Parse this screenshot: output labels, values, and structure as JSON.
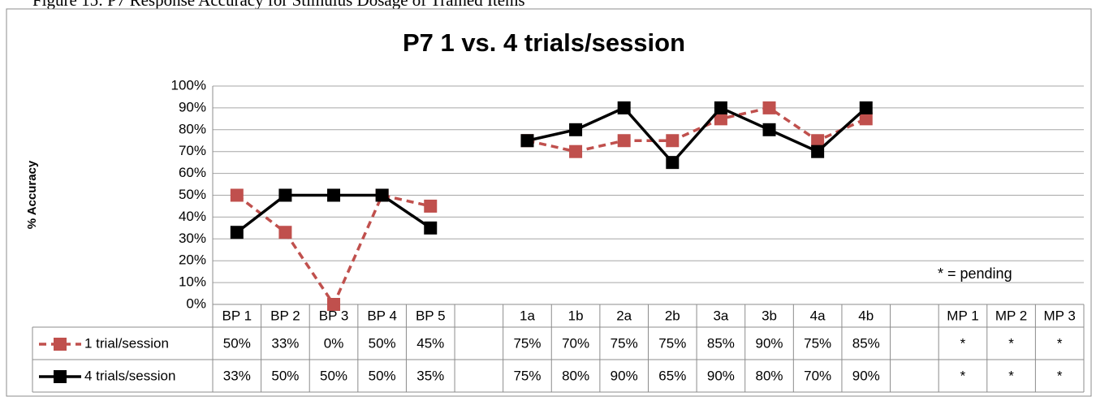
{
  "caption": "Figure 15: P7 Response Accuracy for Stimulus Dosage of Trained Items",
  "chart_data": {
    "type": "line",
    "title": "P7 1 vs. 4 trials/session",
    "y_label": "% Accuracy",
    "categories": [
      "BP 1",
      "BP 2",
      "BP 3",
      "BP 4",
      "BP 5",
      null,
      "1a",
      "1b",
      "2a",
      "2b",
      "3a",
      "3b",
      "4a",
      "4b",
      null,
      "MP 1",
      "MP 2",
      "MP 3"
    ],
    "series": [
      {
        "name": "1 trial/session",
        "color": "#c0504d",
        "dashed": true,
        "values": [
          50,
          33,
          0,
          50,
          45,
          null,
          75,
          70,
          75,
          75,
          85,
          90,
          75,
          85,
          null,
          null,
          null,
          null
        ],
        "value_labels": [
          "50%",
          "33%",
          "0%",
          "50%",
          "45%",
          null,
          "75%",
          "70%",
          "75%",
          "75%",
          "85%",
          "90%",
          "75%",
          "85%",
          null,
          "*",
          "*",
          "*"
        ]
      },
      {
        "name": "4 trials/session",
        "color": "#000000",
        "dashed": false,
        "values": [
          33,
          50,
          50,
          50,
          35,
          null,
          75,
          80,
          90,
          65,
          90,
          80,
          70,
          90,
          null,
          null,
          null,
          null
        ],
        "value_labels": [
          "33%",
          "50%",
          "50%",
          "50%",
          "35%",
          null,
          "75%",
          "80%",
          "90%",
          "65%",
          "90%",
          "80%",
          "70%",
          "90%",
          null,
          "*",
          "*",
          "*"
        ]
      }
    ],
    "ylim": [
      0,
      100
    ],
    "yticks": [
      {
        "value": 0,
        "label": "0%"
      },
      {
        "value": 10,
        "label": "10%"
      },
      {
        "value": 20,
        "label": "20%"
      },
      {
        "value": 30,
        "label": "30%"
      },
      {
        "value": 40,
        "label": "40%"
      },
      {
        "value": 50,
        "label": "50%"
      },
      {
        "value": 60,
        "label": "60%"
      },
      {
        "value": 70,
        "label": "70%"
      },
      {
        "value": 80,
        "label": "80%"
      },
      {
        "value": 90,
        "label": "90%"
      },
      {
        "value": 100,
        "label": "100%"
      }
    ],
    "grid": true,
    "annotation": "* = pending"
  }
}
